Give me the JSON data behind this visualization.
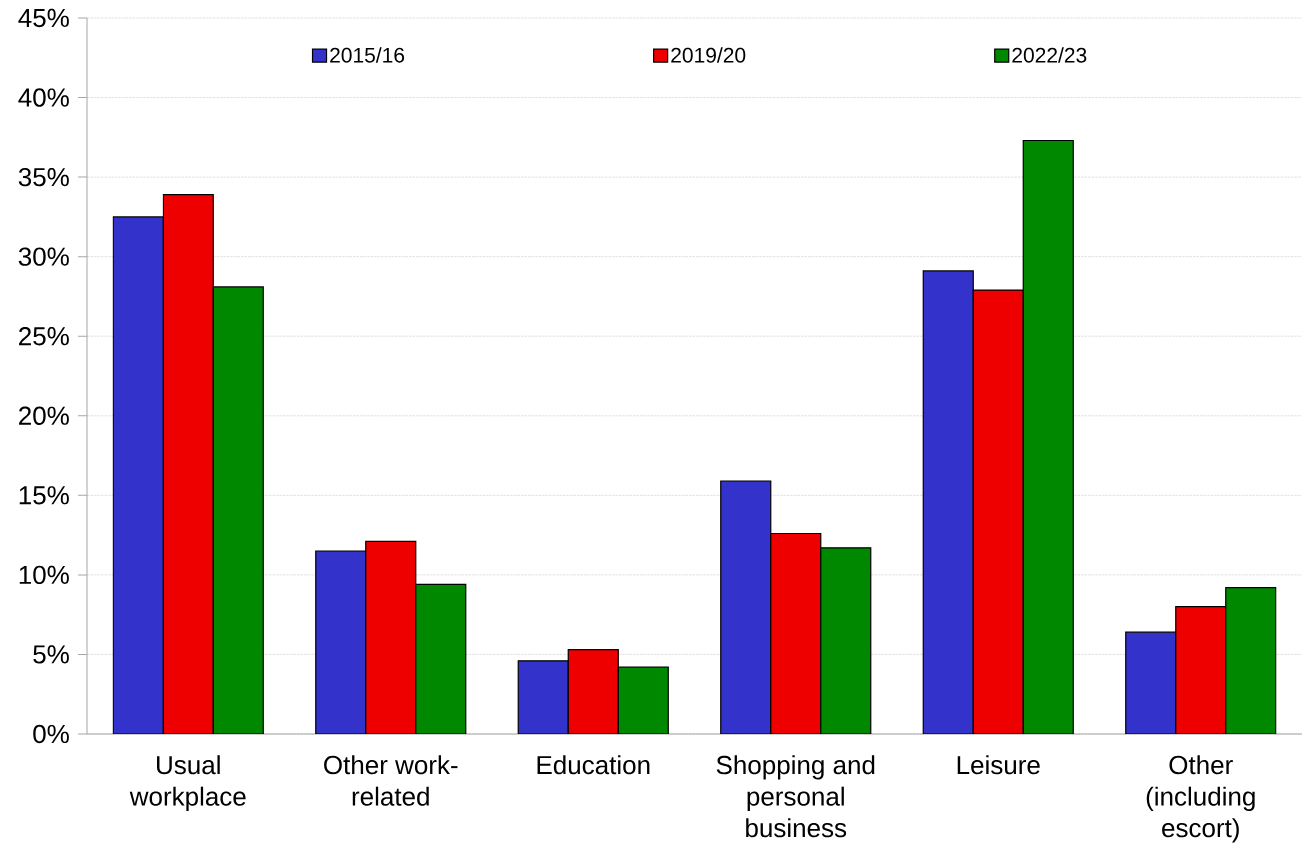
{
  "chart_data": {
    "type": "bar",
    "categories": [
      "Usual workplace",
      "Other work-related",
      "Education",
      "Shopping and personal business",
      "Leisure",
      "Other (including escort)"
    ],
    "series": [
      {
        "name": "2015/16",
        "color": "#3333cc",
        "values": [
          32.5,
          11.5,
          4.6,
          15.9,
          29.1,
          6.4
        ]
      },
      {
        "name": "2019/20",
        "color": "#ee0000",
        "values": [
          33.9,
          12.1,
          5.3,
          12.6,
          27.9,
          8.0
        ]
      },
      {
        "name": "2022/23",
        "color": "#008800",
        "values": [
          28.1,
          9.4,
          4.2,
          11.7,
          37.3,
          9.2
        ]
      }
    ],
    "ylim": [
      0,
      45
    ],
    "yticks": [
      {
        "value": 0,
        "label": "0%"
      },
      {
        "value": 5,
        "label": "5%"
      },
      {
        "value": 10,
        "label": "10%"
      },
      {
        "value": 15,
        "label": "15%"
      },
      {
        "value": 20,
        "label": "20%"
      },
      {
        "value": 25,
        "label": "25%"
      },
      {
        "value": 30,
        "label": "30%"
      },
      {
        "value": 35,
        "label": "35%"
      },
      {
        "value": 40,
        "label": "40%"
      },
      {
        "value": 45,
        "label": "45%"
      }
    ],
    "grid": "y",
    "legend": "top"
  }
}
